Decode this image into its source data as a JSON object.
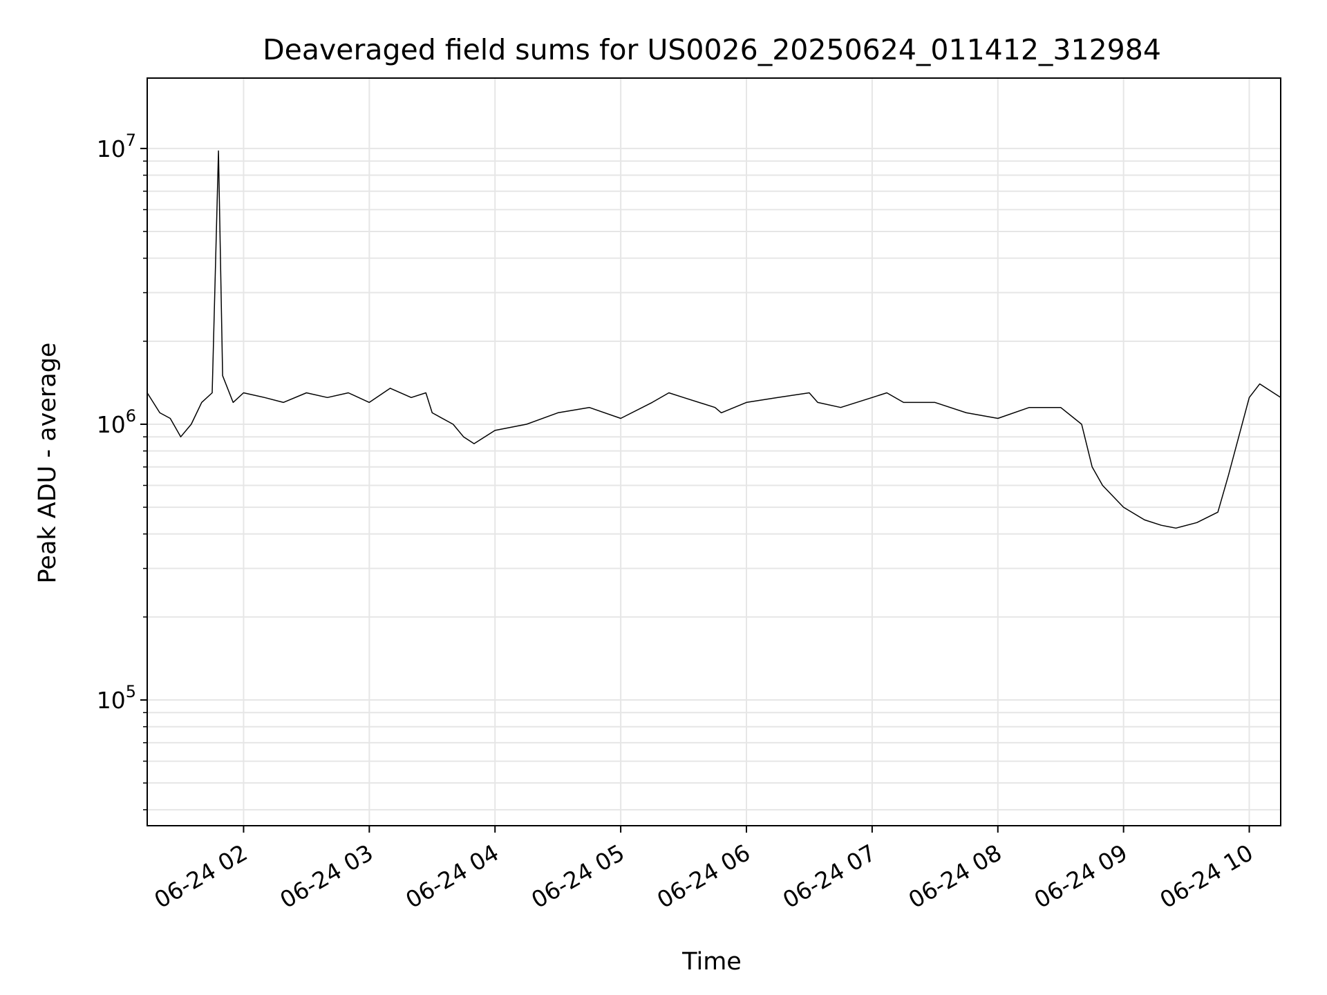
{
  "chart_data": {
    "type": "line",
    "title": "Deaveraged field sums for US0026_20250624_011412_312984",
    "xlabel": "Time",
    "ylabel": "Peak ADU - average",
    "yscale": "log",
    "grid": true,
    "line_color": "#000000",
    "grid_color": "#e6e6e6",
    "xlim": [
      "2025-06-24 01:14",
      "2025-06-24 10:15"
    ],
    "ylim": [
      35000,
      18000000
    ],
    "x_ticks": [
      {
        "value": "2025-06-24 02:00",
        "label": "06-24 02"
      },
      {
        "value": "2025-06-24 03:00",
        "label": "06-24 03"
      },
      {
        "value": "2025-06-24 04:00",
        "label": "06-24 04"
      },
      {
        "value": "2025-06-24 05:00",
        "label": "06-24 05"
      },
      {
        "value": "2025-06-24 06:00",
        "label": "06-24 06"
      },
      {
        "value": "2025-06-24 07:00",
        "label": "06-24 07"
      },
      {
        "value": "2025-06-24 08:00",
        "label": "06-24 08"
      },
      {
        "value": "2025-06-24 09:00",
        "label": "06-24 09"
      },
      {
        "value": "2025-06-24 10:00",
        "label": "06-24 10"
      }
    ],
    "y_ticks": [
      {
        "value": 100000,
        "base": "10",
        "exp": "5"
      },
      {
        "value": 1000000,
        "base": "10",
        "exp": "6"
      },
      {
        "value": 10000000,
        "base": "10",
        "exp": "7"
      }
    ],
    "series": [
      {
        "x": [
          "2025-06-24 01:14",
          "2025-06-24 01:20",
          "2025-06-24 01:25",
          "2025-06-24 01:30",
          "2025-06-24 01:35",
          "2025-06-24 01:40",
          "2025-06-24 01:45",
          "2025-06-24 01:48",
          "2025-06-24 01:50",
          "2025-06-24 01:55",
          "2025-06-24 02:00",
          "2025-06-24 02:10",
          "2025-06-24 02:19",
          "2025-06-24 02:30",
          "2025-06-24 02:40",
          "2025-06-24 02:50",
          "2025-06-24 03:00",
          "2025-06-24 03:10",
          "2025-06-24 03:20",
          "2025-06-24 03:27",
          "2025-06-24 03:30",
          "2025-06-24 03:40",
          "2025-06-24 03:45",
          "2025-06-24 03:50",
          "2025-06-24 04:00",
          "2025-06-24 04:15",
          "2025-06-24 04:30",
          "2025-06-24 04:45",
          "2025-06-24 05:00",
          "2025-06-24 05:15",
          "2025-06-24 05:23",
          "2025-06-24 05:30",
          "2025-06-24 05:45",
          "2025-06-24 05:48",
          "2025-06-24 06:00",
          "2025-06-24 06:15",
          "2025-06-24 06:30",
          "2025-06-24 06:34",
          "2025-06-24 06:45",
          "2025-06-24 07:00",
          "2025-06-24 07:07",
          "2025-06-24 07:15",
          "2025-06-24 07:30",
          "2025-06-24 07:45",
          "2025-06-24 08:00",
          "2025-06-24 08:15",
          "2025-06-24 08:30",
          "2025-06-24 08:40",
          "2025-06-24 08:45",
          "2025-06-24 08:50",
          "2025-06-24 09:00",
          "2025-06-24 09:10",
          "2025-06-24 09:18",
          "2025-06-24 09:25",
          "2025-06-24 09:35",
          "2025-06-24 09:45",
          "2025-06-24 09:50",
          "2025-06-24 10:00",
          "2025-06-24 10:05",
          "2025-06-24 10:15"
        ],
        "y": [
          1300000,
          1100000,
          1050000,
          900000,
          1000000,
          1200000,
          1300000,
          9800000,
          1500000,
          1200000,
          1300000,
          1250000,
          1200000,
          1300000,
          1250000,
          1300000,
          1200000,
          1350000,
          1250000,
          1300000,
          1100000,
          1000000,
          900000,
          850000,
          950000,
          1000000,
          1100000,
          1150000,
          1050000,
          1200000,
          1300000,
          1250000,
          1150000,
          1100000,
          1200000,
          1250000,
          1300000,
          1200000,
          1150000,
          1250000,
          1300000,
          1200000,
          1200000,
          1100000,
          1050000,
          1150000,
          1150000,
          1000000,
          700000,
          600000,
          500000,
          450000,
          430000,
          420000,
          440000,
          480000,
          650000,
          1250000,
          1400000,
          1250000
        ]
      }
    ]
  }
}
